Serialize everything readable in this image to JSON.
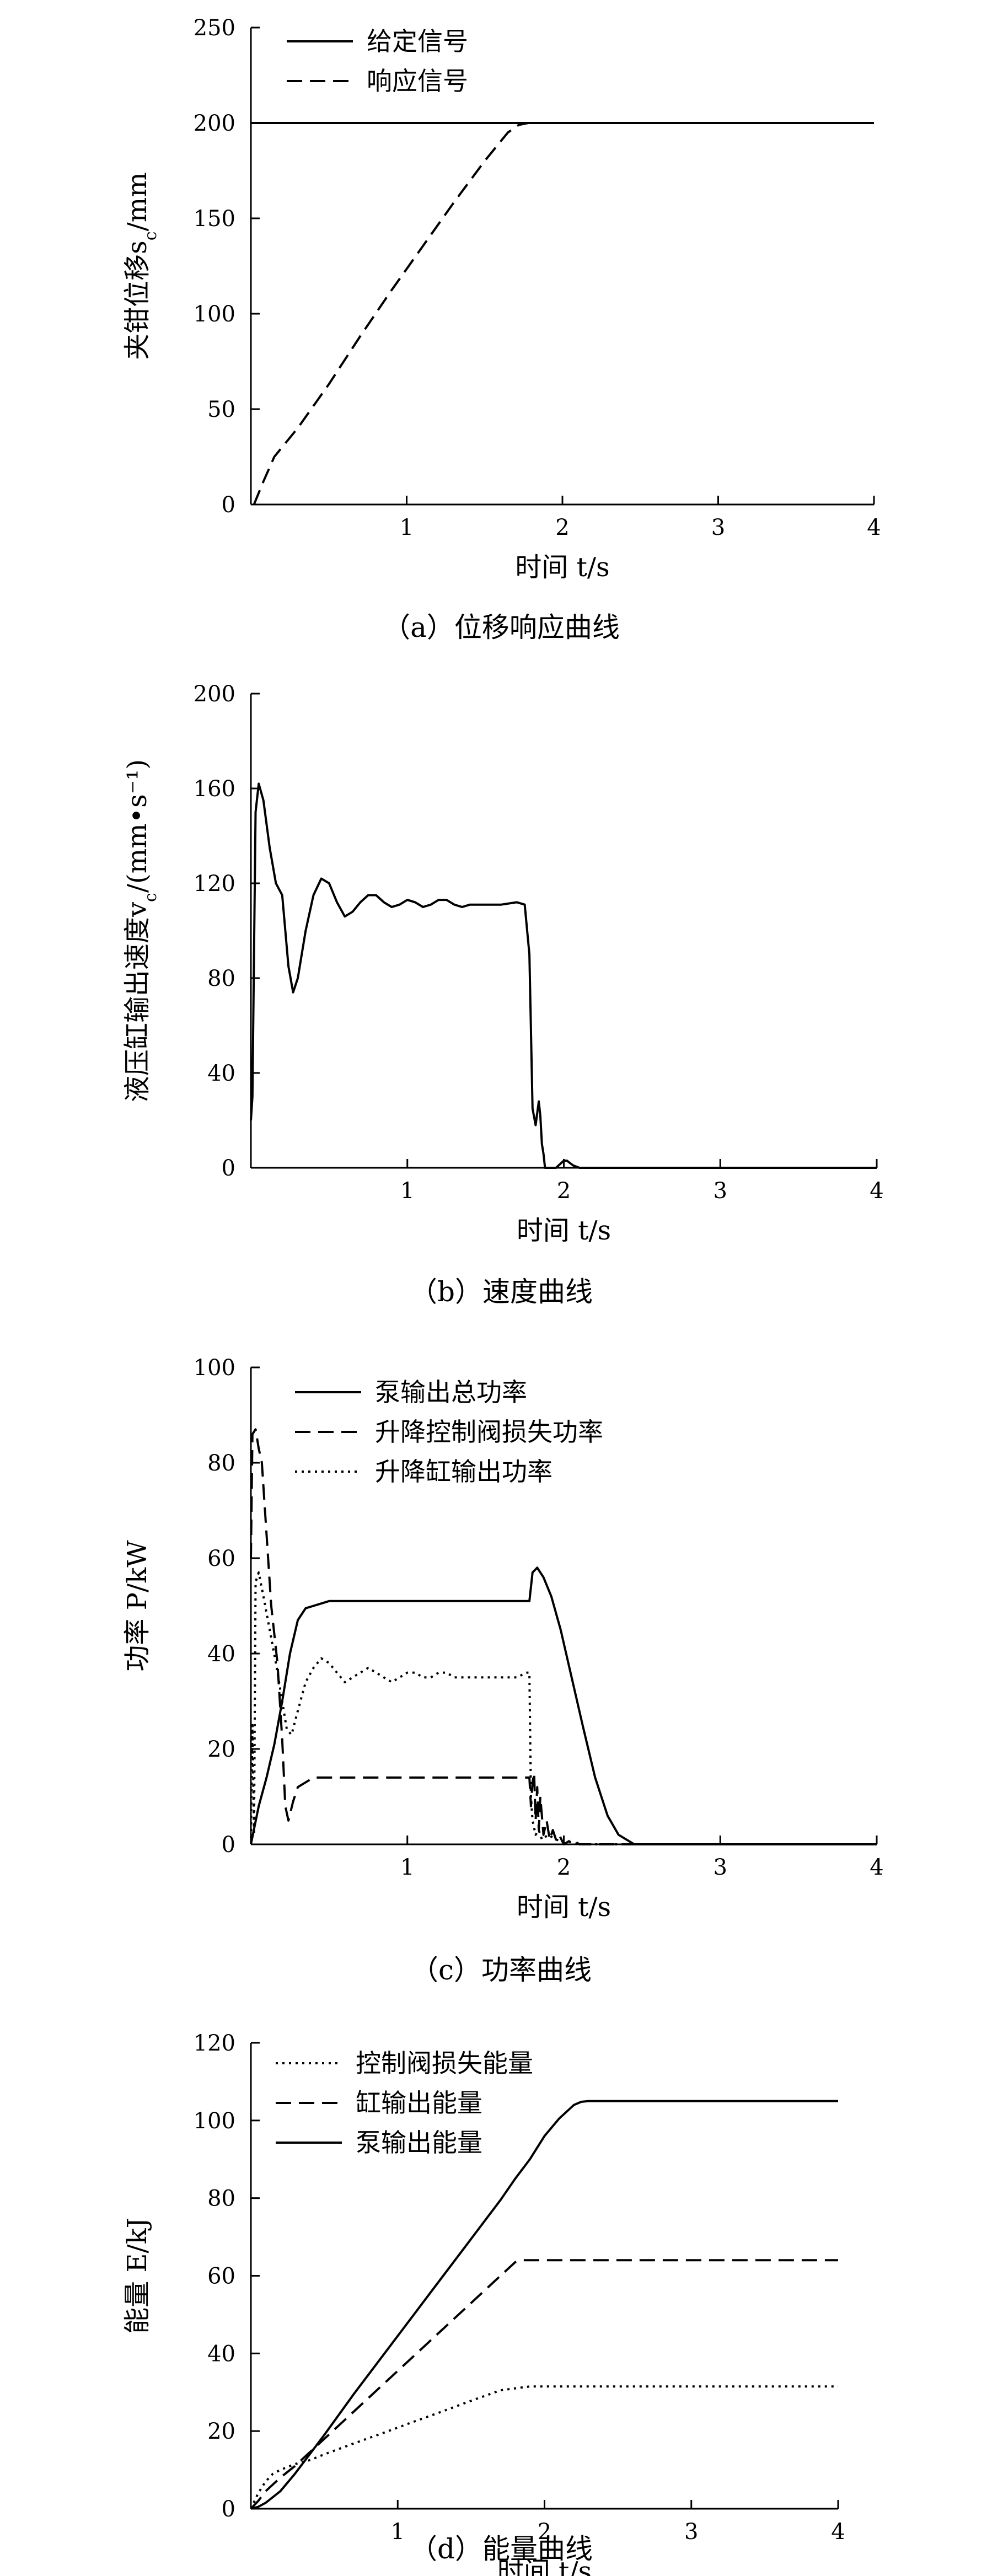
{
  "chart_data": [
    {
      "type": "line",
      "caption": "（a）位移响应曲线",
      "xlabel": "时间 t/s",
      "ylabel": "夹钳位移s",
      "ylabel_sub": "c",
      "ylabel_unit": "/mm",
      "xlim": [
        0,
        4
      ],
      "ylim": [
        0,
        250
      ],
      "xticks": [
        0,
        1,
        2,
        3,
        4
      ],
      "yticks": [
        0,
        50,
        100,
        150,
        200,
        250
      ],
      "x_tick_labels": [
        "1",
        "2",
        "3",
        "4"
      ],
      "y_tick_labels": [
        "0",
        "50",
        "100",
        "150",
        "200",
        "250"
      ],
      "legend_position": "top-left",
      "grid": false,
      "series": [
        {
          "name": "给定信号",
          "style": "solid",
          "x": [
            0,
            4
          ],
          "y": [
            200,
            200
          ]
        },
        {
          "name": "响应信号",
          "style": "dashed",
          "x": [
            0.02,
            0.08,
            0.15,
            0.3,
            0.5,
            0.7,
            0.9,
            1.1,
            1.3,
            1.5,
            1.65,
            1.72,
            1.78
          ],
          "y": [
            0,
            12,
            25,
            40,
            63,
            88,
            112,
            135,
            158,
            180,
            195,
            199,
            200
          ]
        }
      ]
    },
    {
      "type": "line",
      "caption": "（b）速度曲线",
      "xlabel": "时间 t/s",
      "ylabel": "液压缸输出速度v",
      "ylabel_sub": "c",
      "ylabel_unit": "/(mm•s⁻¹)",
      "xlim": [
        0,
        4
      ],
      "ylim": [
        0,
        200
      ],
      "xticks": [
        1,
        2,
        3,
        4
      ],
      "yticks": [
        0,
        40,
        80,
        120,
        160,
        200
      ],
      "x_tick_labels": [
        "1",
        "2",
        "3",
        "4"
      ],
      "y_tick_labels": [
        "0",
        "40",
        "80",
        "120",
        "160",
        "200"
      ],
      "grid": false,
      "series": [
        {
          "style": "solid",
          "x": [
            0.0,
            0.01,
            0.03,
            0.05,
            0.08,
            0.12,
            0.16,
            0.2,
            0.24,
            0.27,
            0.3,
            0.35,
            0.4,
            0.45,
            0.5,
            0.55,
            0.6,
            0.65,
            0.7,
            0.75,
            0.8,
            0.85,
            0.9,
            0.95,
            1.0,
            1.05,
            1.1,
            1.15,
            1.2,
            1.25,
            1.3,
            1.35,
            1.4,
            1.5,
            1.6,
            1.7,
            1.75,
            1.78,
            1.8,
            1.82,
            1.84,
            1.85,
            1.86,
            1.87,
            1.88,
            1.9,
            1.95,
            2.0,
            2.02,
            2.04,
            2.06,
            2.1,
            4.0
          ],
          "y": [
            20,
            30,
            150,
            162,
            155,
            135,
            120,
            115,
            85,
            74,
            80,
            100,
            115,
            122,
            120,
            112,
            106,
            108,
            112,
            115,
            115,
            112,
            110,
            111,
            113,
            112,
            110,
            111,
            113,
            113,
            111,
            110,
            111,
            111,
            111,
            112,
            111,
            90,
            25,
            18,
            28,
            22,
            10,
            6,
            0,
            0,
            0,
            3,
            3,
            2,
            1,
            0,
            0
          ]
        }
      ]
    },
    {
      "type": "line",
      "caption": "（c）功率曲线",
      "xlabel": "时间 t/s",
      "ylabel": "功率 P/kW",
      "xlim": [
        0,
        4
      ],
      "ylim": [
        0,
        100
      ],
      "xticks": [
        0,
        1,
        2,
        3,
        4
      ],
      "yticks": [
        0,
        20,
        40,
        60,
        80,
        100
      ],
      "x_tick_labels": [
        "1",
        "2",
        "3",
        "4"
      ],
      "y_tick_labels": [
        "0",
        "20",
        "40",
        "60",
        "80",
        "100"
      ],
      "legend_position": "top-left",
      "grid": false,
      "series": [
        {
          "name": "泵输出总功率",
          "style": "solid",
          "x": [
            0.0,
            0.05,
            0.1,
            0.15,
            0.2,
            0.25,
            0.3,
            0.35,
            0.4,
            0.45,
            0.5,
            0.6,
            0.8,
            1.0,
            1.2,
            1.4,
            1.6,
            1.78,
            1.8,
            1.83,
            1.87,
            1.92,
            1.98,
            2.05,
            2.12,
            2.2,
            2.28,
            2.35,
            2.4,
            2.45,
            4.0
          ],
          "y": [
            0,
            8,
            14,
            21,
            30,
            40,
            47,
            49.5,
            50,
            50.5,
            51,
            51,
            51,
            51,
            51,
            51,
            51,
            51,
            57,
            58,
            56,
            52,
            45,
            35,
            25,
            14,
            6,
            2,
            1,
            0,
            0
          ]
        },
        {
          "name": "升降控制阀损失功率",
          "style": "dashed",
          "x": [
            0.0,
            0.01,
            0.03,
            0.05,
            0.07,
            0.1,
            0.13,
            0.17,
            0.2,
            0.22,
            0.24,
            0.27,
            0.3,
            0.35,
            0.4,
            0.5,
            0.6,
            0.8,
            1.0,
            1.2,
            1.4,
            1.6,
            1.78,
            1.79,
            1.8,
            1.81,
            1.82,
            1.83,
            1.84,
            1.85,
            1.87,
            1.89,
            1.91,
            1.93,
            1.95,
            1.97,
            2.0,
            2.05,
            2.1,
            4.0
          ],
          "y": [
            60,
            86,
            87,
            83,
            80,
            65,
            50,
            38,
            22,
            8,
            5,
            9,
            12,
            13,
            14,
            14,
            14,
            14,
            14,
            14,
            14,
            14,
            14,
            8,
            13,
            15,
            5,
            12,
            3,
            10,
            2,
            5,
            1,
            3,
            1,
            2,
            0,
            1,
            0,
            0
          ]
        },
        {
          "name": "升降缸输出功率",
          "style": "dotted",
          "x": [
            0.0,
            0.01,
            0.02,
            0.03,
            0.05,
            0.08,
            0.12,
            0.16,
            0.2,
            0.23,
            0.26,
            0.3,
            0.35,
            0.4,
            0.45,
            0.5,
            0.55,
            0.6,
            0.65,
            0.7,
            0.75,
            0.8,
            0.85,
            0.9,
            0.95,
            1.0,
            1.05,
            1.1,
            1.15,
            1.2,
            1.25,
            1.3,
            1.35,
            1.4,
            1.5,
            1.6,
            1.7,
            1.76,
            1.78,
            1.79,
            1.8,
            1.82,
            1.84,
            1.86,
            1.9,
            1.95,
            2.0,
            2.05,
            2.1,
            4.0
          ],
          "y": [
            0,
            25,
            2,
            55,
            57,
            52,
            45,
            38,
            30,
            24,
            23,
            28,
            34,
            37,
            39,
            38,
            36,
            34,
            35,
            36,
            37,
            36,
            35,
            34,
            35,
            36,
            36,
            35,
            35,
            36,
            36,
            35,
            35,
            35,
            35,
            35,
            35,
            36,
            36,
            10,
            5,
            2,
            3,
            1,
            2,
            1,
            0.5,
            0.5,
            0,
            0
          ]
        }
      ]
    },
    {
      "type": "line",
      "caption": "（d）能量曲线",
      "xlabel": "时间 t/s",
      "ylabel": "能量 E/kJ",
      "xlim": [
        0,
        4
      ],
      "ylim": [
        0,
        120
      ],
      "xticks": [
        1,
        2,
        3,
        4
      ],
      "yticks": [
        0,
        20,
        40,
        60,
        80,
        100,
        120
      ],
      "x_tick_labels": [
        "1",
        "2",
        "3",
        "4"
      ],
      "y_tick_labels": [
        "0",
        "20",
        "40",
        "60",
        "80",
        "100",
        "120"
      ],
      "legend_position": "top-left",
      "grid": false,
      "series": [
        {
          "name": "控制阀损失能量",
          "style": "dotted",
          "x": [
            0.0,
            0.05,
            0.1,
            0.15,
            0.2,
            0.3,
            0.4,
            0.5,
            0.7,
            0.9,
            1.1,
            1.3,
            1.5,
            1.7,
            1.8,
            1.9,
            2.0,
            4.0
          ],
          "y": [
            0,
            4,
            7,
            9,
            10,
            11.5,
            12.5,
            14,
            16.8,
            19.5,
            22.3,
            25,
            27.8,
            30.5,
            31,
            31.5,
            31.5,
            31.5
          ]
        },
        {
          "name": "缸输出能量",
          "style": "dashed",
          "x": [
            0.0,
            0.05,
            0.1,
            0.2,
            0.3,
            0.4,
            0.5,
            0.7,
            0.9,
            1.1,
            1.3,
            1.5,
            1.7,
            1.8,
            1.85,
            2.0,
            4.0
          ],
          "y": [
            0,
            2,
            4.5,
            8,
            11,
            14.5,
            18,
            25,
            32,
            39,
            46,
            53,
            60,
            63.5,
            64,
            64,
            64
          ]
        },
        {
          "name": "泵输出能量",
          "style": "solid",
          "x": [
            0.0,
            0.05,
            0.1,
            0.2,
            0.3,
            0.4,
            0.5,
            0.7,
            0.9,
            1.1,
            1.3,
            1.5,
            1.7,
            1.8,
            1.9,
            2.0,
            2.1,
            2.2,
            2.25,
            2.3,
            4.0
          ],
          "y": [
            0,
            0.5,
            1.5,
            4.5,
            9,
            14,
            19,
            29.5,
            39.5,
            49.5,
            59.5,
            69.5,
            79.5,
            85,
            90,
            96,
            100.5,
            104,
            104.8,
            105,
            105
          ]
        }
      ]
    }
  ]
}
